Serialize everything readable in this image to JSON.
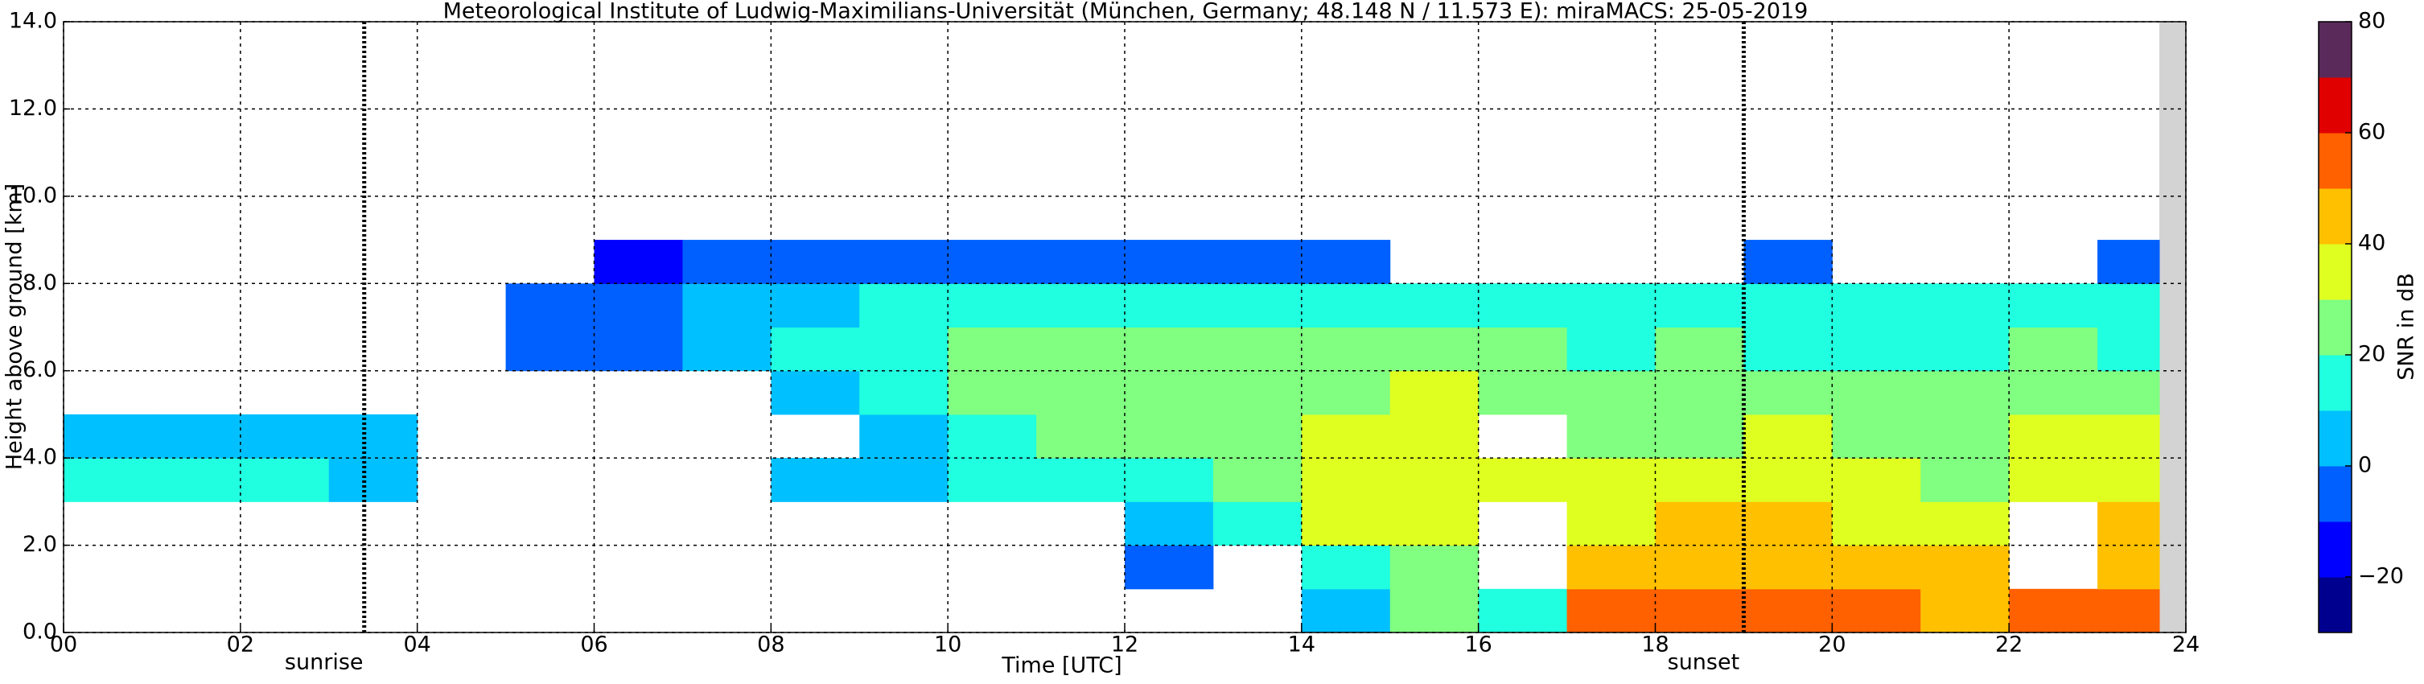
{
  "chart_data": {
    "type": "heatmap",
    "title": "Meteorological Institute of Ludwig-Maximilians-Universität (München, Germany; 48.148 N / 11.573 E):    miraMACS: 25-05-2019",
    "xlabel": "Time [UTC]",
    "ylabel": "Height above ground [km]",
    "colorbar_label": "SNR in dB",
    "xlim": [
      0,
      24
    ],
    "xticks": [
      {
        "value": 0,
        "label": "00"
      },
      {
        "value": 2,
        "label": "02"
      },
      {
        "value": 4,
        "label": "04"
      },
      {
        "value": 6,
        "label": "06"
      },
      {
        "value": 8,
        "label": "08"
      },
      {
        "value": 10,
        "label": "10"
      },
      {
        "value": 12,
        "label": "12"
      },
      {
        "value": 14,
        "label": "14"
      },
      {
        "value": 16,
        "label": "16"
      },
      {
        "value": 18,
        "label": "18"
      },
      {
        "value": 20,
        "label": "20"
      },
      {
        "value": 22,
        "label": "22"
      },
      {
        "value": 24,
        "label": "24"
      }
    ],
    "ylim": [
      0,
      14
    ],
    "yticks": [
      {
        "value": 0,
        "label": "0.0"
      },
      {
        "value": 2,
        "label": "2.0"
      },
      {
        "value": 4,
        "label": "4.0"
      },
      {
        "value": 6,
        "label": "6.0"
      },
      {
        "value": 8,
        "label": "8.0"
      },
      {
        "value": 10,
        "label": "10.0"
      },
      {
        "value": 12,
        "label": "12.0"
      },
      {
        "value": 14,
        "label": "14.0"
      }
    ],
    "clim": [
      -30,
      80
    ],
    "cticks": [
      {
        "value": -20,
        "label": "−20"
      },
      0,
      20,
      40,
      60,
      80
    ],
    "colormap": [
      "#00008f",
      "#0000ff",
      "#0060ff",
      "#00c0ff",
      "#20ffdf",
      "#80ff80",
      "#dfff20",
      "#ffc000",
      "#ff6000",
      "#e00000",
      "#5a2a5a"
    ],
    "grid": true,
    "annotations": [
      {
        "label": "sunrise",
        "x": 3.4
      },
      {
        "label": "sunset",
        "x": 19.0
      }
    ],
    "x_edges": [
      0,
      1,
      2,
      3,
      4,
      5,
      6,
      7,
      8,
      9,
      10,
      11,
      12,
      13,
      14,
      15,
      16,
      17,
      18,
      19,
      20,
      21,
      22,
      23,
      23.7
    ],
    "y_edges": [
      0,
      1,
      2,
      3,
      4,
      5,
      6,
      7,
      8,
      9,
      10,
      11,
      12,
      13,
      14
    ],
    "z": [
      [
        null,
        null,
        null,
        null,
        null,
        null,
        null,
        null,
        null,
        null,
        null,
        null,
        null,
        null,
        0,
        20,
        10,
        50,
        55,
        55,
        50,
        45,
        50,
        55
      ],
      [
        null,
        null,
        null,
        null,
        null,
        null,
        null,
        null,
        null,
        null,
        null,
        null,
        -10,
        null,
        10,
        20,
        null,
        40,
        45,
        45,
        40,
        40,
        null,
        45
      ],
      [
        null,
        null,
        null,
        null,
        null,
        null,
        null,
        null,
        null,
        null,
        null,
        null,
        5,
        15,
        30,
        30,
        null,
        35,
        40,
        40,
        35,
        30,
        null,
        40
      ],
      [
        15,
        10,
        10,
        5,
        null,
        null,
        null,
        null,
        0,
        0,
        10,
        15,
        15,
        25,
        35,
        35,
        30,
        30,
        35,
        35,
        30,
        25,
        30,
        35
      ],
      [
        5,
        5,
        0,
        0,
        null,
        null,
        null,
        null,
        null,
        5,
        15,
        20,
        25,
        25,
        30,
        30,
        null,
        25,
        25,
        30,
        25,
        20,
        30,
        30
      ],
      [
        null,
        null,
        null,
        null,
        null,
        null,
        null,
        null,
        5,
        15,
        20,
        20,
        25,
        25,
        25,
        30,
        25,
        20,
        20,
        20,
        20,
        20,
        25,
        25
      ],
      [
        null,
        null,
        null,
        null,
        null,
        -10,
        -10,
        0,
        10,
        15,
        20,
        20,
        20,
        20,
        20,
        20,
        20,
        15,
        20,
        15,
        15,
        15,
        20,
        15
      ],
      [
        null,
        null,
        null,
        null,
        null,
        -10,
        -5,
        5,
        5,
        10,
        15,
        15,
        15,
        15,
        15,
        15,
        15,
        10,
        10,
        10,
        10,
        10,
        10,
        10
      ],
      [
        null,
        null,
        null,
        null,
        null,
        null,
        -15,
        -10,
        -10,
        -10,
        -10,
        -5,
        -10,
        -10,
        -10,
        null,
        null,
        null,
        null,
        -10,
        null,
        null,
        null,
        -10
      ],
      [
        null,
        null,
        null,
        null,
        null,
        null,
        null,
        null,
        null,
        null,
        null,
        null,
        null,
        null,
        null,
        null,
        null,
        null,
        null,
        null,
        null,
        null,
        null,
        null
      ],
      [
        null,
        null,
        null,
        null,
        null,
        null,
        null,
        null,
        null,
        null,
        null,
        null,
        null,
        null,
        null,
        null,
        null,
        null,
        null,
        null,
        null,
        null,
        null,
        null
      ],
      [
        null,
        null,
        null,
        null,
        null,
        null,
        null,
        null,
        null,
        null,
        null,
        null,
        null,
        null,
        null,
        null,
        null,
        null,
        null,
        null,
        null,
        null,
        null,
        null
      ],
      [
        null,
        null,
        null,
        null,
        null,
        null,
        null,
        null,
        null,
        null,
        null,
        null,
        null,
        null,
        null,
        null,
        null,
        null,
        null,
        null,
        null,
        null,
        null,
        null
      ],
      [
        null,
        null,
        null,
        null,
        null,
        null,
        null,
        null,
        null,
        null,
        null,
        null,
        null,
        null,
        null,
        null,
        null,
        null,
        null,
        null,
        null,
        null,
        null,
        null
      ]
    ]
  }
}
